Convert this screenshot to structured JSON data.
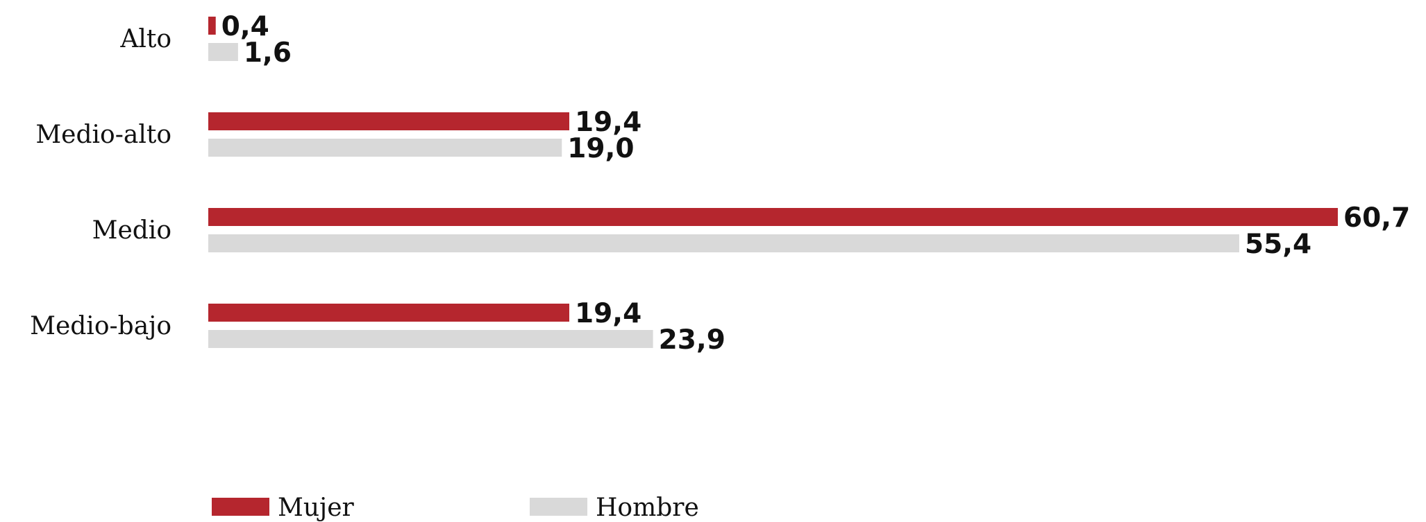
{
  "chart_data": {
    "type": "bar",
    "orientation": "horizontal",
    "categories": [
      "Alto",
      "Medio-alto",
      "Medio",
      "Medio-bajo"
    ],
    "series": [
      {
        "name": "Mujer",
        "values": [
          0.4,
          19.4,
          60.7,
          19.4
        ],
        "labels": [
          "0,4",
          "19,4",
          "60,7",
          "19,4"
        ],
        "color": "#B5262E"
      },
      {
        "name": "Hombre",
        "values": [
          1.6,
          19.0,
          55.4,
          23.9
        ],
        "labels": [
          "1,6",
          "19,0",
          "55,4",
          "23,9"
        ],
        "color": "#D9D9D9"
      }
    ],
    "xlim": [
      0,
      60.7
    ],
    "grid": false,
    "legend_position": "bottom-left"
  }
}
